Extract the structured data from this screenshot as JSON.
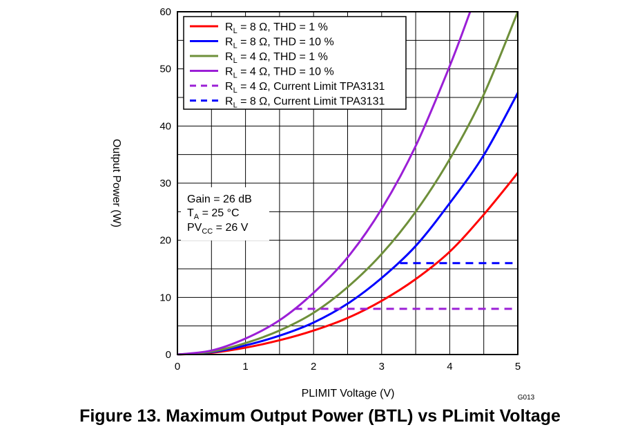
{
  "caption": "Figure 13. Maximum Output Power (BTL) vs PLimit Voltage",
  "figure_id": "G013",
  "chart_data": {
    "type": "line",
    "xlabel": "PLIMIT Voltage (V)",
    "ylabel": "Output Power (W)",
    "xlim": [
      0,
      5
    ],
    "ylim": [
      0,
      60
    ],
    "xticks": [
      0,
      1,
      2,
      3,
      4,
      5
    ],
    "yticks": [
      0,
      10,
      20,
      30,
      40,
      50,
      60
    ],
    "grid": true,
    "minor_grid": true,
    "legend_position": "top-left",
    "series": [
      {
        "name": "RL = 8 Ω, THD = 1 %",
        "label_main": "R",
        "label_sub": "L",
        "label_rest": " = 8 Ω, THD = 1 %",
        "color": "#ff0000",
        "dashed": false,
        "x": [
          0,
          0.5,
          1,
          1.5,
          2,
          2.5,
          3,
          3.5,
          4,
          4.5,
          5
        ],
        "y": [
          0,
          0.3,
          1.2,
          2.5,
          4.2,
          6.4,
          9.4,
          13.2,
          18.0,
          24.5,
          31.8
        ]
      },
      {
        "name": "RL = 8 Ω, THD = 10 %",
        "label_main": "R",
        "label_sub": "L",
        "label_rest": " = 8 Ω, THD = 10 %",
        "color": "#0000ff",
        "dashed": false,
        "x": [
          0,
          0.5,
          1,
          1.5,
          2,
          2.5,
          3,
          3.5,
          4,
          4.5,
          5
        ],
        "y": [
          0,
          0.4,
          1.6,
          3.3,
          5.6,
          8.9,
          13.4,
          19.0,
          26.5,
          34.9,
          45.8
        ]
      },
      {
        "name": "RL = 4 Ω, THD = 1 %",
        "label_main": "R",
        "label_sub": "L",
        "label_rest": " = 4 Ω, THD = 1 %",
        "color": "#6e8f3a",
        "dashed": false,
        "x": [
          0,
          0.5,
          1,
          1.5,
          2,
          2.5,
          3,
          3.5,
          4,
          4.5,
          5
        ],
        "y": [
          0,
          0.5,
          2.0,
          4.2,
          7.3,
          11.8,
          17.6,
          25.0,
          34.2,
          45.5,
          60.0
        ]
      },
      {
        "name": "RL = 4 Ω, THD = 10 %",
        "label_main": "R",
        "label_sub": "L",
        "label_rest": " = 4 Ω, THD = 10 %",
        "color": "#9b1fd6",
        "dashed": false,
        "x": [
          0,
          0.5,
          1,
          1.5,
          2,
          2.5,
          3,
          3.5,
          4,
          4.3
        ],
        "y": [
          0,
          0.7,
          2.8,
          6.0,
          10.8,
          17.0,
          25.5,
          36.5,
          50.5,
          60.0
        ]
      },
      {
        "name": "RL = 4 Ω, Current Limit TPA3131",
        "label_main": "R",
        "label_sub": "L",
        "label_rest": " = 4 Ω, Current Limit TPA3131",
        "color": "#9b1fd6",
        "dashed": true,
        "x": [
          1.72,
          5
        ],
        "y": [
          8,
          8
        ]
      },
      {
        "name": "RL = 8 Ω, Current Limit TPA3131",
        "label_main": "R",
        "label_sub": "L",
        "label_rest": " = 8 Ω, Current Limit TPA3131",
        "color": "#0000ff",
        "dashed": true,
        "x": [
          3.27,
          5
        ],
        "y": [
          16,
          16
        ]
      }
    ],
    "annotation": {
      "line1": "Gain = 26 dB",
      "line2_main": "T",
      "line2_sub": "A",
      "line2_rest": " = 25 °C",
      "line3_main": "PV",
      "line3_sub": "CC",
      "line3_rest": " = 26 V"
    }
  }
}
